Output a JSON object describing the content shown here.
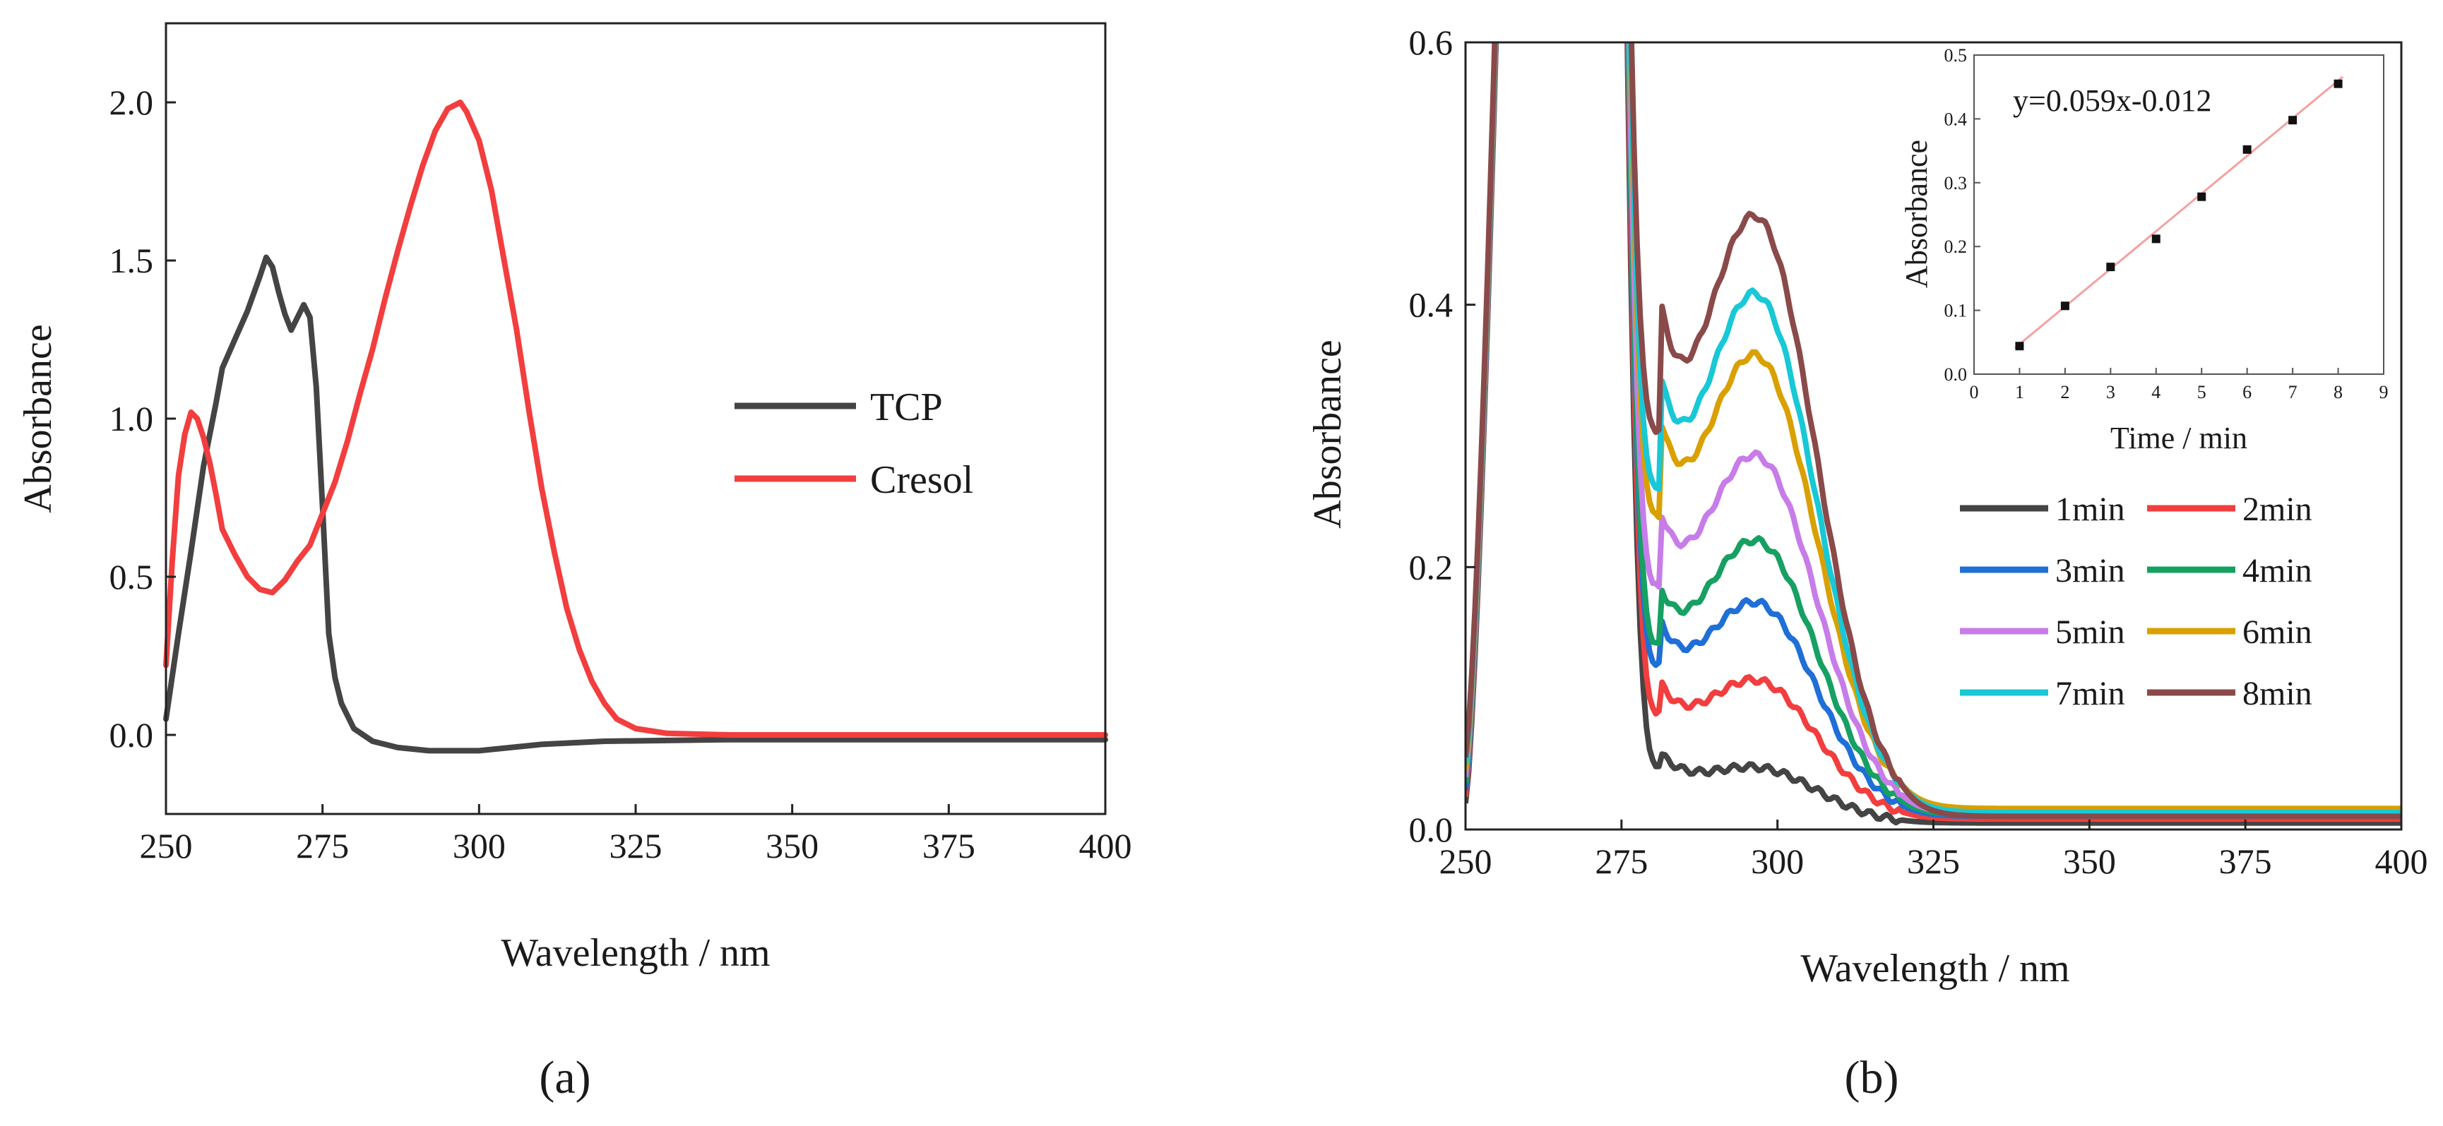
{
  "chart_data": [
    {
      "id": "a",
      "type": "line",
      "panel_label": "(a)",
      "xlabel": "Wavelength / nm",
      "ylabel": "Absorbance",
      "xlim": [
        250,
        400
      ],
      "ylim": [
        -0.25,
        2.25
      ],
      "xticks": [
        250,
        275,
        300,
        325,
        350,
        375,
        400
      ],
      "yticks": [
        0.0,
        0.5,
        1.0,
        1.5,
        2.0
      ],
      "x_tick_labels": [
        "250",
        "275",
        "300",
        "325",
        "350",
        "375",
        "400"
      ],
      "y_tick_labels": [
        "0.0",
        "0.5",
        "1.0",
        "1.5",
        "2.0"
      ],
      "legend": {
        "position": "center-right"
      },
      "series": [
        {
          "name": "TCP",
          "color": "#444444",
          "points": [
            [
              250,
              0.05
            ],
            [
              252,
              0.32
            ],
            [
              254,
              0.58
            ],
            [
              256,
              0.85
            ],
            [
              258,
              1.05
            ],
            [
              259,
              1.16
            ],
            [
              261,
              1.25
            ],
            [
              263,
              1.34
            ],
            [
              265,
              1.45
            ],
            [
              266,
              1.51
            ],
            [
              267,
              1.48
            ],
            [
              268,
              1.4
            ],
            [
              269,
              1.33
            ],
            [
              270,
              1.28
            ],
            [
              271,
              1.32
            ],
            [
              272,
              1.36
            ],
            [
              273,
              1.32
            ],
            [
              274,
              1.1
            ],
            [
              275,
              0.72
            ],
            [
              276,
              0.32
            ],
            [
              277,
              0.18
            ],
            [
              278,
              0.1
            ],
            [
              280,
              0.02
            ],
            [
              283,
              -0.02
            ],
            [
              287,
              -0.04
            ],
            [
              292,
              -0.05
            ],
            [
              300,
              -0.05
            ],
            [
              305,
              -0.04
            ],
            [
              310,
              -0.03
            ],
            [
              320,
              -0.02
            ],
            [
              340,
              -0.015
            ],
            [
              360,
              -0.015
            ],
            [
              380,
              -0.015
            ],
            [
              400,
              -0.015
            ]
          ]
        },
        {
          "name": "Cresol",
          "color": "#f23e3e",
          "points": [
            [
              250,
              0.22
            ],
            [
              251,
              0.55
            ],
            [
              252,
              0.82
            ],
            [
              253,
              0.95
            ],
            [
              254,
              1.02
            ],
            [
              255,
              1.0
            ],
            [
              256,
              0.94
            ],
            [
              257,
              0.86
            ],
            [
              258,
              0.76
            ],
            [
              259,
              0.65
            ],
            [
              261,
              0.57
            ],
            [
              263,
              0.5
            ],
            [
              265,
              0.46
            ],
            [
              267,
              0.45
            ],
            [
              269,
              0.49
            ],
            [
              271,
              0.55
            ],
            [
              273,
              0.6
            ],
            [
              275,
              0.7
            ],
            [
              277,
              0.8
            ],
            [
              279,
              0.93
            ],
            [
              281,
              1.08
            ],
            [
              283,
              1.22
            ],
            [
              285,
              1.38
            ],
            [
              287,
              1.53
            ],
            [
              289,
              1.67
            ],
            [
              291,
              1.8
            ],
            [
              293,
              1.91
            ],
            [
              295,
              1.98
            ],
            [
              297,
              2.0
            ],
            [
              298,
              1.97
            ],
            [
              300,
              1.88
            ],
            [
              302,
              1.72
            ],
            [
              304,
              1.5
            ],
            [
              306,
              1.28
            ],
            [
              308,
              1.02
            ],
            [
              310,
              0.78
            ],
            [
              312,
              0.58
            ],
            [
              314,
              0.4
            ],
            [
              316,
              0.27
            ],
            [
              318,
              0.17
            ],
            [
              320,
              0.1
            ],
            [
              322,
              0.05
            ],
            [
              325,
              0.02
            ],
            [
              330,
              0.005
            ],
            [
              340,
              0.0
            ],
            [
              360,
              0.0
            ],
            [
              380,
              0.0
            ],
            [
              400,
              0.0
            ]
          ]
        }
      ]
    },
    {
      "id": "b",
      "type": "line",
      "panel_label": "(b)",
      "xlabel": "Wavelength / nm",
      "ylabel": "Absorbance",
      "xlim": [
        250,
        400
      ],
      "ylim": [
        0.0,
        0.6
      ],
      "xticks": [
        250,
        275,
        300,
        325,
        350,
        375,
        400
      ],
      "yticks": [
        0.0,
        0.2,
        0.4,
        0.6
      ],
      "x_tick_labels": [
        "250",
        "275",
        "300",
        "325",
        "350",
        "375",
        "400"
      ],
      "y_tick_labels": [
        "0.0",
        "0.2",
        "0.4",
        "0.6"
      ],
      "legend": {
        "position": "lower-right",
        "columns": 2
      },
      "series": [
        {
          "name": "1min",
          "color": "#444444",
          "trough": 0.05,
          "peak": 0.045,
          "tail": 0.005
        },
        {
          "name": "2min",
          "color": "#f23e3e",
          "trough": 0.09,
          "peak": 0.11,
          "tail": 0.008
        },
        {
          "name": "3min",
          "color": "#1f6fd6",
          "trough": 0.125,
          "peak": 0.168,
          "tail": 0.01
        },
        {
          "name": "4min",
          "color": "#16a062",
          "trough": 0.14,
          "peak": 0.215,
          "tail": 0.011
        },
        {
          "name": "5min",
          "color": "#c77ce8",
          "trough": 0.185,
          "peak": 0.278,
          "tail": 0.012
        },
        {
          "name": "6min",
          "color": "#d9a000",
          "trough": 0.24,
          "peak": 0.352,
          "tail": 0.016
        },
        {
          "name": "7min",
          "color": "#18c8d6",
          "trough": 0.262,
          "peak": 0.398,
          "tail": 0.013
        },
        {
          "name": "8min",
          "color": "#8a4a4a",
          "trough": 0.305,
          "peak": 0.455,
          "tail": 0.01
        }
      ]
    },
    {
      "id": "b-inset",
      "type": "scatter",
      "equation": "y=0.059x-0.012",
      "xlabel": "Time / min",
      "ylabel": "Absorbance",
      "xlim": [
        0,
        9
      ],
      "ylim": [
        0.0,
        0.5
      ],
      "xticks": [
        0,
        1,
        2,
        3,
        4,
        5,
        6,
        7,
        8,
        9
      ],
      "yticks": [
        0.0,
        0.1,
        0.2,
        0.3,
        0.4,
        0.5
      ],
      "x_tick_labels": [
        "0",
        "1",
        "2",
        "3",
        "4",
        "5",
        "6",
        "7",
        "8",
        "9"
      ],
      "y_tick_labels": [
        "0.0",
        "0.1",
        "0.2",
        "0.3",
        "0.4",
        "0.5"
      ],
      "points": [
        [
          1,
          0.044
        ],
        [
          2,
          0.107
        ],
        [
          3,
          0.168
        ],
        [
          4,
          0.212
        ],
        [
          5,
          0.278
        ],
        [
          6,
          0.352
        ],
        [
          7,
          0.398
        ],
        [
          8,
          0.455
        ]
      ],
      "fit": {
        "slope": 0.059,
        "intercept": -0.012,
        "x_range": [
          0.9,
          8.1
        ],
        "color": "#f6a0a0"
      },
      "marker_color": "#111111"
    }
  ]
}
